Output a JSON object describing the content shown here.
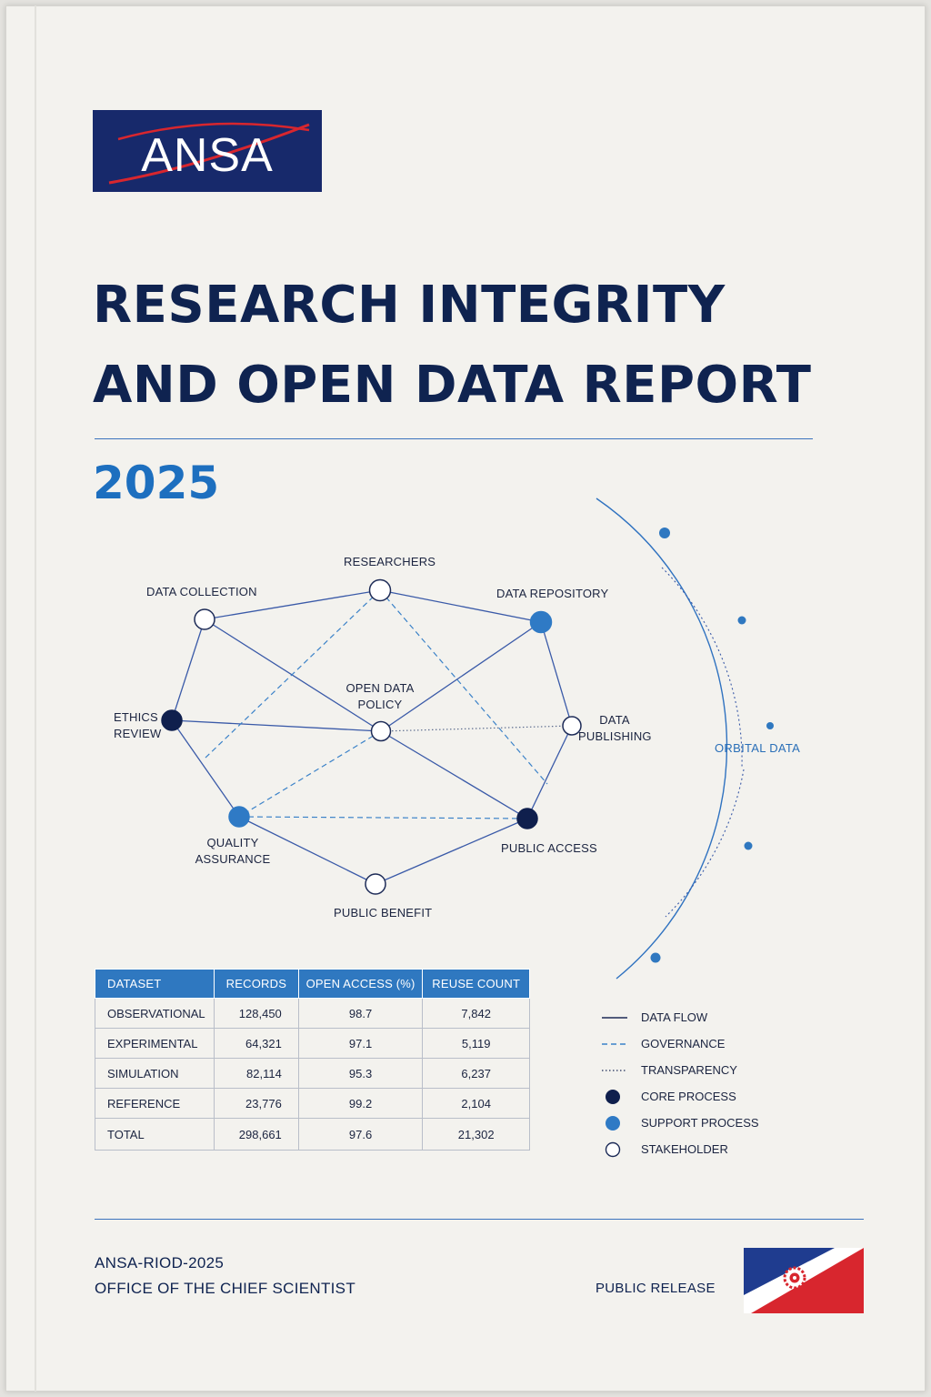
{
  "logo": {
    "text": "ANSA",
    "bg_color": "#17296b",
    "swoosh_color": "#d8262e"
  },
  "title": {
    "line1": "RESEARCH INTEGRITY",
    "line2": "AND OPEN DATA REPORT"
  },
  "year": "2025",
  "diagram": {
    "nodes": [
      {
        "id": "researchers",
        "label_lines": [
          "RESEARCHERS"
        ],
        "kind": "stakeholder"
      },
      {
        "id": "data-collection",
        "label_lines": [
          "DATA COLLECTION"
        ],
        "kind": "stakeholder"
      },
      {
        "id": "data-repository",
        "label_lines": [
          "DATA REPOSITORY"
        ],
        "kind": "support"
      },
      {
        "id": "ethics-review",
        "label_lines": [
          "ETHICS",
          "REVIEW"
        ],
        "kind": "core"
      },
      {
        "id": "open-data-policy",
        "label_lines": [
          "OPEN DATA",
          "POLICY"
        ],
        "kind": "stakeholder"
      },
      {
        "id": "data-publishing",
        "label_lines": [
          "DATA",
          "PUBLISHING"
        ],
        "kind": "stakeholder"
      },
      {
        "id": "quality-assurance",
        "label_lines": [
          "QUALITY",
          "ASSURANCE"
        ],
        "kind": "support"
      },
      {
        "id": "public-access",
        "label_lines": [
          "PUBLIC ACCESS"
        ],
        "kind": "core"
      },
      {
        "id": "public-benefit",
        "label_lines": [
          "PUBLIC BENEFIT"
        ],
        "kind": "stakeholder"
      }
    ],
    "orbital_label": "ORBITAL DATA",
    "colors": {
      "core": "#0f1f4d",
      "support": "#2f7ac5",
      "line": "#3a5aa8",
      "dashed": "#3b82c8"
    }
  },
  "table": {
    "headers": [
      "DATASET",
      "RECORDS",
      "OPEN ACCESS (%)",
      "REUSE COUNT"
    ],
    "rows": [
      [
        "OBSERVATIONAL",
        "128,450",
        "98.7",
        "7,842"
      ],
      [
        "EXPERIMENTAL",
        "64,321",
        "97.1",
        "5,119"
      ],
      [
        "SIMULATION",
        "82,114",
        "95.3",
        "6,237"
      ],
      [
        "REFERENCE",
        "23,776",
        "99.2",
        "2,104"
      ],
      [
        "TOTAL",
        "298,661",
        "97.6",
        "21,302"
      ]
    ],
    "header_color": "#2f78c0"
  },
  "legend": [
    {
      "symbol": "solid-line",
      "label": "DATA FLOW"
    },
    {
      "symbol": "dashed-line",
      "label": "GOVERNANCE"
    },
    {
      "symbol": "dotted-line",
      "label": "TRANSPARENCY"
    },
    {
      "symbol": "filled-dark-circle",
      "label": "CORE PROCESS"
    },
    {
      "symbol": "filled-blue-circle",
      "label": "SUPPORT PROCESS"
    },
    {
      "symbol": "hollow-circle",
      "label": "STAKEHOLDER"
    }
  ],
  "footer": {
    "code": "ANSA-RIOD-2025",
    "office": "OFFICE OF THE CHIEF SCIENTIST",
    "release": "PUBLIC RELEASE"
  },
  "flag": {
    "blue": "#1f3c8f",
    "red": "#d8262e",
    "emblem": "gear-emblem-icon"
  }
}
